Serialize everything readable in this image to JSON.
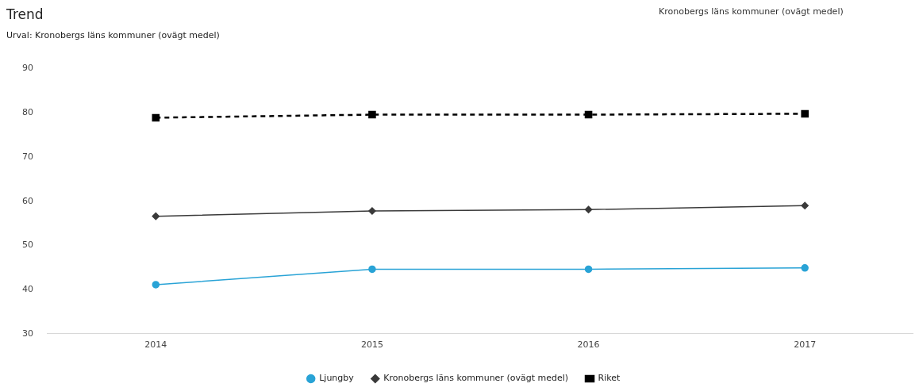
{
  "chart_data": {
    "type": "line",
    "title": "Trend",
    "subtitle": "Urval: Kronobergs läns kommuner (ovägt medel)",
    "annotations": [
      "Kronobergs läns kommuner (ovägt medel)"
    ],
    "categories": [
      "2014",
      "2015",
      "2016",
      "2017"
    ],
    "series": [
      {
        "name": "Ljungby",
        "color": "#29a3d6",
        "values": [
          41.1,
          44.6,
          44.6,
          44.9
        ],
        "marker": "circle",
        "line_style": "solid"
      },
      {
        "name": "Kronobergs läns kommuner (ovägt medel)",
        "color": "#3a3a3a",
        "values": [
          56.6,
          57.8,
          58.1,
          59.0
        ],
        "marker": "diamond",
        "line_style": "solid"
      },
      {
        "name": "Riket",
        "color": "#000000",
        "values": [
          78.9,
          79.6,
          79.6,
          79.8
        ],
        "marker": "square",
        "line_style": "dashed"
      }
    ],
    "ylim": [
      30,
      90
    ],
    "yticks": [
      30,
      40,
      50,
      60,
      70,
      80,
      90
    ],
    "grid": false,
    "legend": "bottom"
  }
}
